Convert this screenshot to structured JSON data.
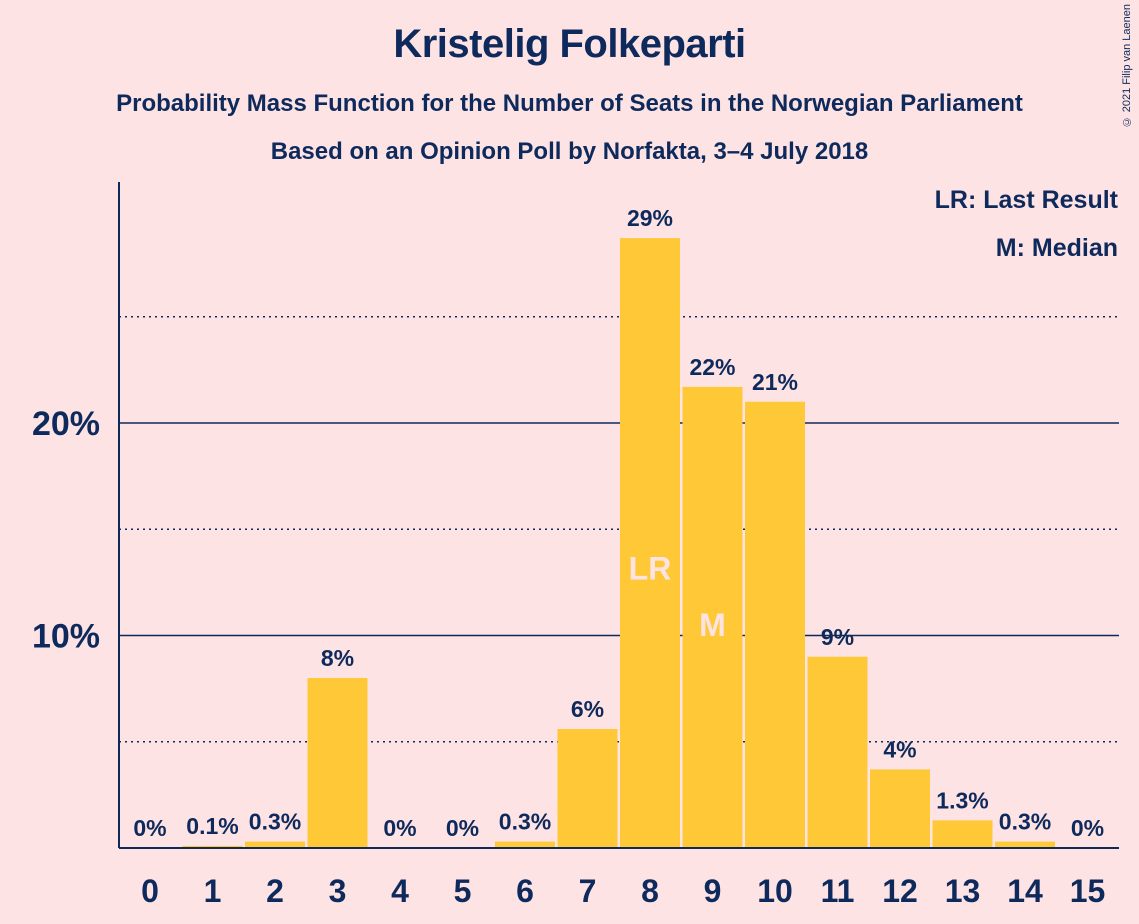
{
  "header": {
    "title": "Kristelig Folkeparti",
    "subtitle": "Probability Mass Function for the Number of Seats in the Norwegian Parliament",
    "source": "Based on an Opinion Poll by Norfakta, 3–4 July 2018"
  },
  "copyright": "© 2021 Filip van Laenen",
  "legend": {
    "lr": "LR: Last Result",
    "m": "M: Median"
  },
  "colors": {
    "background": "#fde3e3",
    "bar": "#ffc837",
    "text": "#0e2a5c"
  },
  "chart_data": {
    "type": "bar",
    "categories": [
      "0",
      "1",
      "2",
      "3",
      "4",
      "5",
      "6",
      "7",
      "8",
      "9",
      "10",
      "11",
      "12",
      "13",
      "14",
      "15"
    ],
    "values": [
      0,
      0.1,
      0.3,
      8,
      0,
      0,
      0.3,
      5.6,
      28.7,
      21.7,
      21.0,
      9.0,
      3.7,
      1.3,
      0.3,
      0
    ],
    "labels": [
      "0%",
      "0.1%",
      "0.3%",
      "8%",
      "0%",
      "0%",
      "0.3%",
      "6%",
      "29%",
      "22%",
      "21%",
      "9%",
      "4%",
      "1.3%",
      "0.3%",
      "0%"
    ],
    "yticks": [
      10,
      20
    ],
    "ytick_labels": [
      "10%",
      "20%"
    ],
    "ylim": [
      0,
      31.2
    ],
    "grid_major": [
      10,
      20
    ],
    "grid_minor": [
      5,
      15,
      25
    ],
    "markers": [
      {
        "category": "8",
        "text": "LR"
      },
      {
        "category": "9",
        "text": "M"
      }
    ],
    "legend_position": "top-right"
  }
}
